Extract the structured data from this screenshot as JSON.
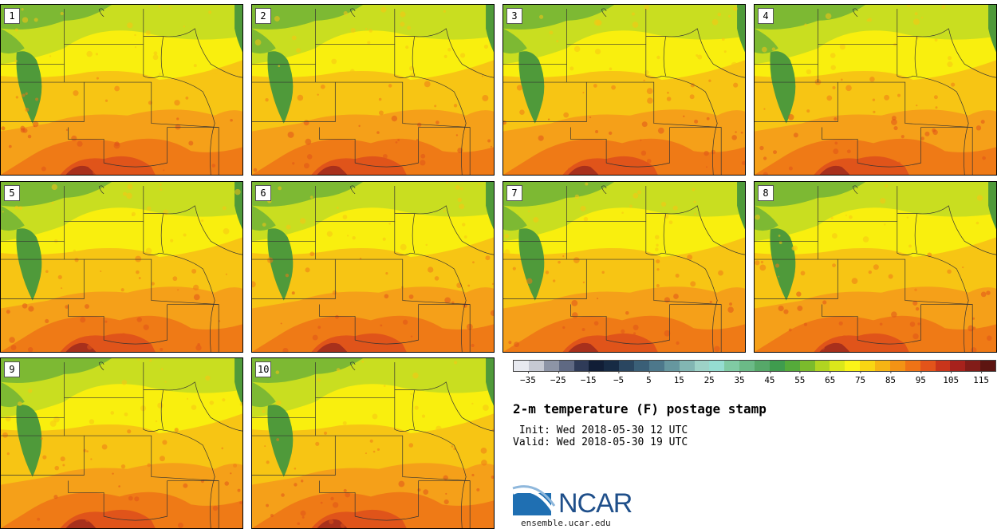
{
  "map": {
    "panels": [
      "1",
      "2",
      "3",
      "4",
      "5",
      "6",
      "7",
      "8",
      "9",
      "10"
    ],
    "field": "2-m temperature (F)",
    "colors": {
      "cold_green": "#4f9a3a",
      "green": "#7db933",
      "yellow_green": "#c9de20",
      "yellow": "#f9ef0e",
      "gold": "#f7c514",
      "orange": "#f5a019",
      "dark_orange": "#ef7a16",
      "red_orange": "#e0541a",
      "brown": "#a8301c",
      "border": "#333333"
    }
  },
  "colorbar": {
    "colors": [
      "#e8eaf0",
      "#c6c9d3",
      "#8d94a6",
      "#5f6983",
      "#2f3b58",
      "#111e36",
      "#172b44",
      "#2a4660",
      "#3a5f77",
      "#4d788b",
      "#66979f",
      "#82b6b3",
      "#9dd2c7",
      "#95ddd1",
      "#80cba4",
      "#6bba87",
      "#56a869",
      "#3f9c4e",
      "#55ab3a",
      "#7bbb2c",
      "#b1d421",
      "#dbe71b",
      "#fbf418",
      "#f9d613",
      "#f6b414",
      "#f39315",
      "#ef7316",
      "#e3541a",
      "#c9351b",
      "#a7221c",
      "#821c18",
      "#5d1511"
    ],
    "ticks": [
      "−35",
      "−25",
      "−15",
      "−5",
      "5",
      "15",
      "25",
      "35",
      "45",
      "55",
      "65",
      "75",
      "85",
      "95",
      "105",
      "115"
    ],
    "min": -40,
    "max": 120
  },
  "title": "2-m temperature (F) postage stamp",
  "init_line": " Init: Wed 2018-05-30 12 UTC",
  "valid_line": "Valid: Wed 2018-05-30 19 UTC",
  "logo": {
    "text": "NCAR",
    "site": "ensemble.ucar.edu"
  }
}
